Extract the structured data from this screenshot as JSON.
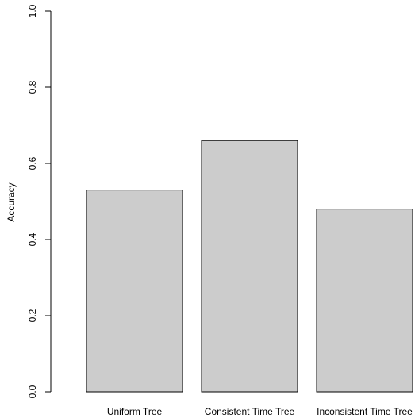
{
  "chart_data": {
    "type": "bar",
    "title": "",
    "xlabel": "",
    "ylabel": "Accuracy",
    "categories": [
      "Uniform Tree",
      "Consistent Time Tree",
      "Inconsistent Time Tree"
    ],
    "values": [
      0.53,
      0.66,
      0.48
    ],
    "ylim": [
      0,
      1.0
    ],
    "yticks": [
      "0.0",
      "0.2",
      "0.4",
      "0.6",
      "0.8",
      "1.0"
    ],
    "grid": false,
    "legend": "none",
    "bar_fill": "#cccccc",
    "bar_stroke": "#000000"
  }
}
